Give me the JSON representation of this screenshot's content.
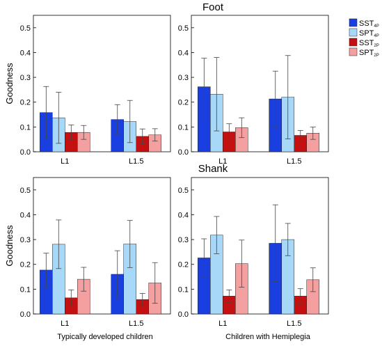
{
  "figure": {
    "row_titles": [
      "Foot",
      "Shank"
    ],
    "group_titles": [
      "Typically developed children",
      "Children with Hemiplegia"
    ]
  },
  "legend": {
    "placement": "right",
    "entries": [
      {
        "label": "SST",
        "sub": "4P",
        "color": "#1a3fe0"
      },
      {
        "label": "SPT",
        "sub": "4P",
        "color": "#a8d8f8"
      },
      {
        "label": "SST",
        "sub": "2P",
        "color": "#c41010"
      },
      {
        "label": "SPT",
        "sub": "2P",
        "color": "#f5a0a0"
      }
    ]
  },
  "chart_data": [
    {
      "type": "bar",
      "row": "Foot",
      "group": "Typically developed children",
      "ylabel": "Goodness",
      "ylim": [
        0,
        0.55
      ],
      "yticks": [
        "0.0",
        "0.1",
        "0.2",
        "0.3",
        "0.4",
        "0.5"
      ],
      "categories": [
        "L1",
        "L1.5"
      ],
      "series": [
        {
          "name": "SST4P",
          "values": [
            0.158,
            0.13
          ],
          "errors": [
            0.105,
            0.06
          ]
        },
        {
          "name": "SPT4P",
          "values": [
            0.137,
            0.122
          ],
          "errors": [
            0.103,
            0.085
          ]
        },
        {
          "name": "SST2P",
          "values": [
            0.078,
            0.062
          ],
          "errors": [
            0.03,
            0.03
          ]
        },
        {
          "name": "SPT2P",
          "values": [
            0.078,
            0.068
          ],
          "errors": [
            0.028,
            0.025
          ]
        }
      ]
    },
    {
      "type": "bar",
      "row": "Foot",
      "group": "Children with Hemiplegia",
      "ylabel": "",
      "ylim": [
        0,
        0.55
      ],
      "yticks": [
        "0.0",
        "0.1",
        "0.2",
        "0.3",
        "0.4",
        "0.5"
      ],
      "categories": [
        "L1",
        "L1.5"
      ],
      "series": [
        {
          "name": "SST4P",
          "values": [
            0.262,
            0.213
          ],
          "errors": [
            0.115,
            0.112
          ]
        },
        {
          "name": "SPT4P",
          "values": [
            0.232,
            0.22
          ],
          "errors": [
            0.148,
            0.168
          ]
        },
        {
          "name": "SST2P",
          "values": [
            0.08,
            0.066
          ],
          "errors": [
            0.033,
            0.02
          ]
        },
        {
          "name": "SPT2P",
          "values": [
            0.097,
            0.075
          ],
          "errors": [
            0.04,
            0.025
          ]
        }
      ]
    },
    {
      "type": "bar",
      "row": "Shank",
      "group": "Typically developed children",
      "ylabel": "Goodness",
      "ylim": [
        0,
        0.55
      ],
      "yticks": [
        "0.0",
        "0.1",
        "0.2",
        "0.3",
        "0.4",
        "0.5"
      ],
      "categories": [
        "L1",
        "L1.5"
      ],
      "series": [
        {
          "name": "SST4P",
          "values": [
            0.177,
            0.16
          ],
          "errors": [
            0.068,
            0.095
          ]
        },
        {
          "name": "SPT4P",
          "values": [
            0.281,
            0.282
          ],
          "errors": [
            0.098,
            0.095
          ]
        },
        {
          "name": "SST2P",
          "values": [
            0.065,
            0.058
          ],
          "errors": [
            0.032,
            0.025
          ]
        },
        {
          "name": "SPT2P",
          "values": [
            0.14,
            0.125
          ],
          "errors": [
            0.048,
            0.082
          ]
        }
      ]
    },
    {
      "type": "bar",
      "row": "Shank",
      "group": "Children with Hemiplegia",
      "ylabel": "",
      "ylim": [
        0,
        0.55
      ],
      "yticks": [
        "0.0",
        "0.1",
        "0.2",
        "0.3",
        "0.4",
        "0.5"
      ],
      "categories": [
        "L1",
        "L1.5"
      ],
      "series": [
        {
          "name": "SST4P",
          "values": [
            0.226,
            0.285
          ],
          "errors": [
            0.077,
            0.155
          ]
        },
        {
          "name": "SPT4P",
          "values": [
            0.318,
            0.3
          ],
          "errors": [
            0.075,
            0.065
          ]
        },
        {
          "name": "SST2P",
          "values": [
            0.072,
            0.072
          ],
          "errors": [
            0.025,
            0.03
          ]
        },
        {
          "name": "SPT2P",
          "values": [
            0.203,
            0.138
          ],
          "errors": [
            0.095,
            0.048
          ]
        }
      ]
    }
  ]
}
